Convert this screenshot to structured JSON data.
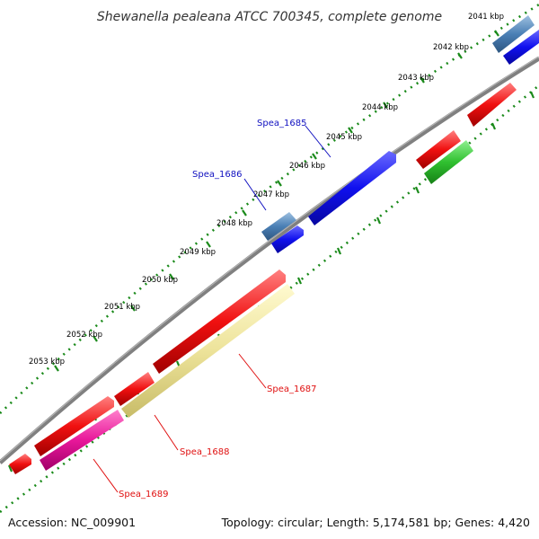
{
  "title": "Shewanella pealeana ATCC 700345, complete genome",
  "ruler_labels": [
    "2041 kbp",
    "2042 kbp",
    "2043 kbp",
    "2044 kbp",
    "2045 kbp",
    "2046 kbp",
    "2047 kbp",
    "2048 kbp",
    "2049 kbp",
    "2050 kbp",
    "2051 kbp",
    "2052 kbp",
    "2053 kbp"
  ],
  "gene_labels": {
    "spea_1685": "Spea_1685",
    "spea_1686": "Spea_1686",
    "spea_1687": "Spea_1687",
    "spea_1688": "Spea_1688",
    "spea_1689": "Spea_1689"
  },
  "footer": {
    "accession": "Accession: NC_009901",
    "summary": "Topology: circular; Length: 5,174,581 bp; Genes: 4,420"
  },
  "colors": {
    "backbone": "#808080",
    "tick_green": "#1a8a1a",
    "gene_blue": "#1010e8",
    "gene_steelblue": "#4a7fb5",
    "gene_red": "#f01010",
    "gene_green": "#30c030",
    "gene_pale_yellow": "#ede39a",
    "gene_magenta": "#e8179a",
    "label_blue": "#1010c0",
    "label_red": "#e01010"
  }
}
